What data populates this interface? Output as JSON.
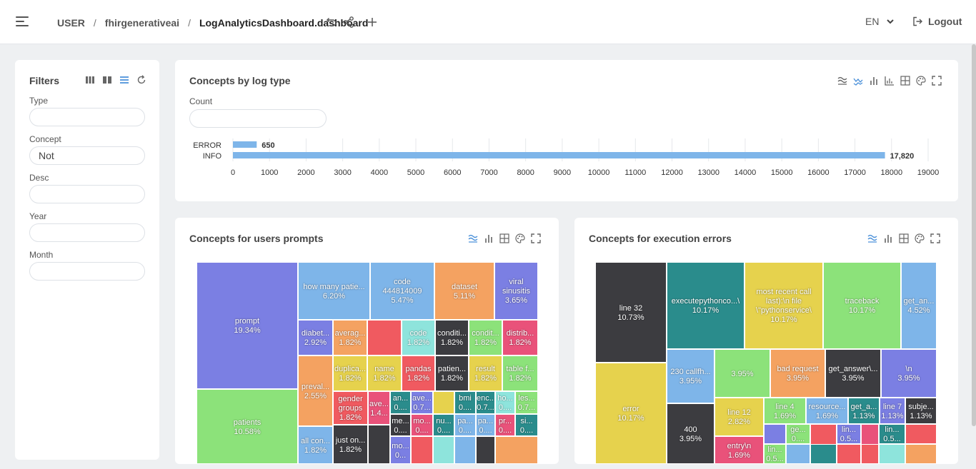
{
  "header": {
    "breadcrumb": [
      "USER",
      "fhirgenerativeai",
      "LogAnalyticsDashboard.dashboard"
    ],
    "separator": "/",
    "language": "EN",
    "logout_label": "Logout"
  },
  "filters": {
    "title": "Filters",
    "fields": [
      {
        "label": "Type",
        "value": ""
      },
      {
        "label": "Concept",
        "value": "Not"
      },
      {
        "label": "Desc",
        "value": ""
      },
      {
        "label": "Year",
        "value": ""
      },
      {
        "label": "Month",
        "value": ""
      }
    ]
  },
  "colors": {
    "purple": "#7b7fe3",
    "blue": "#7eb5e9",
    "orange": "#f4a261",
    "green": "#8ce27a",
    "dark": "#3c3c40",
    "red": "#f05a60",
    "yellow": "#e6d24d",
    "teal": "#2a8c8c",
    "pink": "#e9527a",
    "cyan": "#8ee4dc",
    "accent": "#4a90d9"
  },
  "log_type_panel": {
    "title": "Concepts by log type",
    "count_label": "Count",
    "chart_data": {
      "type": "bar",
      "orientation": "horizontal",
      "categories": [
        "ERROR",
        "INFO"
      ],
      "values": [
        650,
        17820
      ],
      "value_labels": [
        "650",
        "17,820"
      ],
      "xlim": [
        0,
        19000
      ],
      "xticks": [
        "0",
        "1000",
        "2000",
        "3000",
        "4000",
        "5000",
        "6000",
        "7000",
        "8000",
        "9000",
        "10000",
        "11000",
        "12000",
        "13000",
        "14000",
        "15000",
        "16000",
        "17000",
        "18000",
        "19000"
      ],
      "grid": true
    }
  },
  "prompts_panel": {
    "title": "Concepts for users prompts",
    "chart_data": {
      "type": "treemap",
      "cells": [
        {
          "name": "prompt",
          "pct": "19.34%",
          "color": "purple"
        },
        {
          "name": "patients",
          "pct": "10.58%",
          "color": "green"
        },
        {
          "name": "how many patie...",
          "pct": "6.20%",
          "color": "blue"
        },
        {
          "name": "code\n444814009",
          "pct": "5.47%",
          "color": "blue"
        },
        {
          "name": "dataset",
          "pct": "5.11%",
          "color": "orange"
        },
        {
          "name": "viral\nsinusitis",
          "pct": "3.65%",
          "color": "purple"
        },
        {
          "name": "diabet...",
          "pct": "2.92%",
          "color": "purple"
        },
        {
          "name": "averag...",
          "pct": "1.82%",
          "color": "orange"
        },
        {
          "name": "",
          "pct": "",
          "color": "red"
        },
        {
          "name": "code",
          "pct": "1.82%",
          "color": "cyan"
        },
        {
          "name": "conditi...",
          "pct": "1.82%",
          "color": "dark"
        },
        {
          "name": "condit...",
          "pct": "1.82%",
          "color": "green"
        },
        {
          "name": "distrib...",
          "pct": "1.82%",
          "color": "pink"
        },
        {
          "name": "duplica...",
          "pct": "1.82%",
          "color": "yellow"
        },
        {
          "name": "name",
          "pct": "1.82%",
          "color": "yellow"
        },
        {
          "name": "pandas",
          "pct": "1.82%",
          "color": "red"
        },
        {
          "name": "patien...",
          "pct": "1.82%",
          "color": "dark"
        },
        {
          "name": "result",
          "pct": "1.82%",
          "color": "yellow"
        },
        {
          "name": "table f...",
          "pct": "1.82%",
          "color": "green"
        },
        {
          "name": "preval...",
          "pct": "2.55%",
          "color": "orange"
        },
        {
          "name": "gender\ngroups",
          "pct": "1.82%",
          "color": "red"
        },
        {
          "name": "ave...",
          "pct": "1.4...",
          "color": "pink"
        },
        {
          "name": "an...",
          "pct": "0....",
          "color": "teal"
        },
        {
          "name": "ave...",
          "pct": "0.7...",
          "color": "purple"
        },
        {
          "name": "",
          "pct": "",
          "color": "yellow"
        },
        {
          "name": "bmi",
          "pct": "0....",
          "color": "teal"
        },
        {
          "name": "enc...",
          "pct": "0.7...",
          "color": "teal"
        },
        {
          "name": "ho...",
          "pct": "0....",
          "color": "cyan"
        },
        {
          "name": "les...",
          "pct": "0.7...",
          "color": "green"
        },
        {
          "name": "me...",
          "pct": "0....",
          "color": "dark"
        },
        {
          "name": "mo...",
          "pct": "0....",
          "color": "pink"
        },
        {
          "name": "nu...",
          "pct": "0....",
          "color": "teal"
        },
        {
          "name": "pa...",
          "pct": "0....",
          "color": "blue"
        },
        {
          "name": "pa...",
          "pct": "0....",
          "color": "blue"
        },
        {
          "name": "pr...",
          "pct": "0....",
          "color": "pink"
        },
        {
          "name": "si...",
          "pct": "0....",
          "color": "teal"
        },
        {
          "name": "all con...",
          "pct": "1.82%",
          "color": "blue"
        },
        {
          "name": "just on...",
          "pct": "1.82%",
          "color": "dark"
        },
        {
          "name": "",
          "pct": "",
          "color": "dark"
        },
        {
          "name": "mo...",
          "pct": "0...",
          "color": "purple"
        },
        {
          "name": "",
          "pct": "",
          "color": "red"
        },
        {
          "name": "",
          "pct": "",
          "color": "cyan"
        },
        {
          "name": "",
          "pct": "",
          "color": "blue"
        },
        {
          "name": "",
          "pct": "",
          "color": "dark"
        },
        {
          "name": "",
          "pct": "",
          "color": "orange"
        }
      ]
    }
  },
  "errors_panel": {
    "title": "Concepts for execution errors",
    "chart_data": {
      "type": "treemap",
      "cells": [
        {
          "name": "line 32",
          "pct": "10.73%",
          "color": "dark"
        },
        {
          "name": "error",
          "pct": "10.17%",
          "color": "yellow"
        },
        {
          "name": "executepythonco...\\",
          "pct": "10.17%",
          "color": "teal"
        },
        {
          "name": "most recent call\nlast):\\n file\n\\\"pythonservice\\",
          "pct": "10.17%",
          "color": "yellow"
        },
        {
          "name": "traceback",
          "pct": "10.17%",
          "color": "green"
        },
        {
          "name": "get_an...",
          "pct": "4.52%",
          "color": "blue"
        },
        {
          "name": "230 callfh...",
          "pct": "3.95%",
          "color": "blue"
        },
        {
          "name": "",
          "pct": "3.95%",
          "color": "green"
        },
        {
          "name": "bad request",
          "pct": "3.95%",
          "color": "orange"
        },
        {
          "name": "get_answer\\...",
          "pct": "3.95%",
          "color": "dark"
        },
        {
          "name": "\\n",
          "pct": "3.95%",
          "color": "purple"
        },
        {
          "name": "400",
          "pct": "3.95%",
          "color": "dark"
        },
        {
          "name": "line 12",
          "pct": "2.82%",
          "color": "yellow"
        },
        {
          "name": "line 4",
          "pct": "1.69%",
          "color": "green"
        },
        {
          "name": "resource...",
          "pct": "1.69%",
          "color": "blue"
        },
        {
          "name": "get_a...",
          "pct": "1.13%",
          "color": "teal"
        },
        {
          "name": "line 7",
          "pct": "1.13%",
          "color": "purple"
        },
        {
          "name": "subje...",
          "pct": "1.13%",
          "color": "dark"
        },
        {
          "name": "entry\\n",
          "pct": "1.69%",
          "color": "pink"
        },
        {
          "name": "",
          "pct": "",
          "color": "purple"
        },
        {
          "name": "ge...",
          "pct": "0....",
          "color": "green"
        },
        {
          "name": "",
          "pct": "",
          "color": "red"
        },
        {
          "name": "lin...",
          "pct": "0.5...",
          "color": "purple"
        },
        {
          "name": "",
          "pct": "",
          "color": "pink"
        },
        {
          "name": "lin...",
          "pct": "0.5...",
          "color": "teal"
        },
        {
          "name": "",
          "pct": "",
          "color": "red"
        },
        {
          "name": "lin...",
          "pct": "0.5...",
          "color": "green"
        },
        {
          "name": "",
          "pct": "",
          "color": "blue"
        },
        {
          "name": "",
          "pct": "",
          "color": "red"
        },
        {
          "name": "",
          "pct": "",
          "color": "orange"
        },
        {
          "name": "",
          "pct": "",
          "color": "pink"
        },
        {
          "name": "",
          "pct": "",
          "color": "teal"
        },
        {
          "name": "",
          "pct": "",
          "color": "red"
        },
        {
          "name": "",
          "pct": "",
          "color": "cyan"
        },
        {
          "name": "",
          "pct": "",
          "color": "orange"
        }
      ]
    }
  }
}
